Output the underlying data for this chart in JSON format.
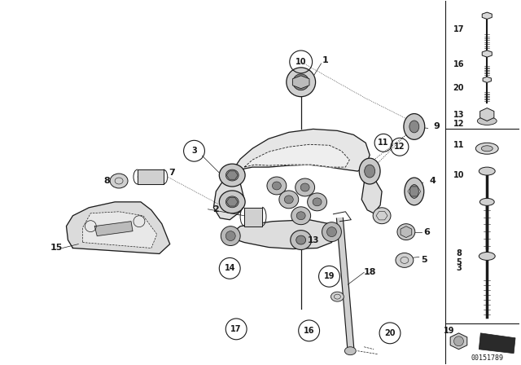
{
  "bg_color": "#ffffff",
  "lc": "#1a1a1a",
  "fig_width": 6.4,
  "fig_height": 4.48,
  "dpi": 100,
  "watermark": "00151789"
}
